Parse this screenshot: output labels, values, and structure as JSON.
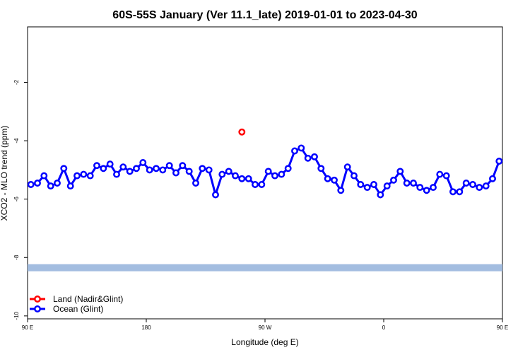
{
  "chart_data": {
    "type": "line",
    "title": "60S-55S January (Ver 11.1_late)   2019-01-01 to 2023-04-30",
    "xlabel": "Longitude (deg E)",
    "ylabel": "XCO2 - MLO trend (ppm)",
    "xlim": [
      90,
      450
    ],
    "ylim": [
      -10.1,
      -0.1
    ],
    "x_ticks": [
      {
        "value": 90,
        "label": "90 E"
      },
      {
        "value": 180,
        "label": "180"
      },
      {
        "value": 270,
        "label": "90 W"
      },
      {
        "value": 360,
        "label": "0"
      },
      {
        "value": 450,
        "label": "90 E"
      },
      {
        "value": 540,
        "label": "180"
      }
    ],
    "y_ticks": [
      -2,
      -4,
      -6,
      -8,
      -10
    ],
    "legend": {
      "placement": "bottom-left",
      "entries": [
        {
          "name": "Land (Nadir&Glint)",
          "color": "#ff0000"
        },
        {
          "name": "Ocean (Glint)",
          "color": "#0000ff"
        }
      ]
    },
    "band": {
      "y": -8.35,
      "color": "#a3bde0"
    },
    "series": [
      {
        "name": "Land (Nadir&Glint)",
        "color": "#ff0000",
        "x": [
          252.5
        ],
        "y": [
          -3.7
        ]
      },
      {
        "name": "Ocean (Glint)",
        "color": "#0000ff",
        "x": [
          92.5,
          97.5,
          102.5,
          107.5,
          112.5,
          117.5,
          122.5,
          127.5,
          132.5,
          137.5,
          142.5,
          147.5,
          152.5,
          157.5,
          162.5,
          167.5,
          172.5,
          177.5,
          182.5,
          187.5,
          192.5,
          197.5,
          202.5,
          207.5,
          212.5,
          217.5,
          222.5,
          227.5,
          232.5,
          237.5,
          242.5,
          247.5,
          252.5,
          257.5,
          262.5,
          267.5,
          272.5,
          277.5,
          282.5,
          287.5,
          292.5,
          297.5,
          302.5,
          307.5,
          312.5,
          317.5,
          322.5,
          327.5,
          332.5,
          337.5,
          342.5,
          347.5,
          352.5,
          357.5,
          362.5,
          367.5,
          372.5,
          377.5,
          382.5,
          387.5,
          392.5,
          397.5,
          402.5,
          407.5,
          412.5,
          417.5,
          422.5,
          427.5,
          432.5,
          437.5,
          442.5,
          447.5
        ],
        "y": [
          -5.5,
          -5.45,
          -5.2,
          -5.55,
          -5.45,
          -4.95,
          -5.55,
          -5.2,
          -5.15,
          -5.2,
          -4.85,
          -4.95,
          -4.8,
          -5.15,
          -4.9,
          -5.05,
          -4.95,
          -4.75,
          -5.0,
          -4.95,
          -5.0,
          -4.85,
          -5.1,
          -4.85,
          -5.05,
          -5.45,
          -4.95,
          -5.0,
          -5.85,
          -5.15,
          -5.05,
          -5.2,
          -5.3,
          -5.3,
          -5.5,
          -5.5,
          -5.05,
          -5.2,
          -5.15,
          -4.95,
          -4.35,
          -4.25,
          -4.6,
          -4.55,
          -4.95,
          -5.3,
          -5.35,
          -5.7,
          -4.9,
          -5.2,
          -5.5,
          -5.6,
          -5.5,
          -5.85,
          -5.55,
          -5.35,
          -5.05,
          -5.45,
          -5.45,
          -5.6,
          -5.7,
          -5.6,
          -5.15,
          -5.2,
          -5.75,
          -5.75,
          -5.45,
          -5.5,
          -5.6,
          -5.55,
          -5.3,
          -4.7
        ]
      }
    ]
  }
}
